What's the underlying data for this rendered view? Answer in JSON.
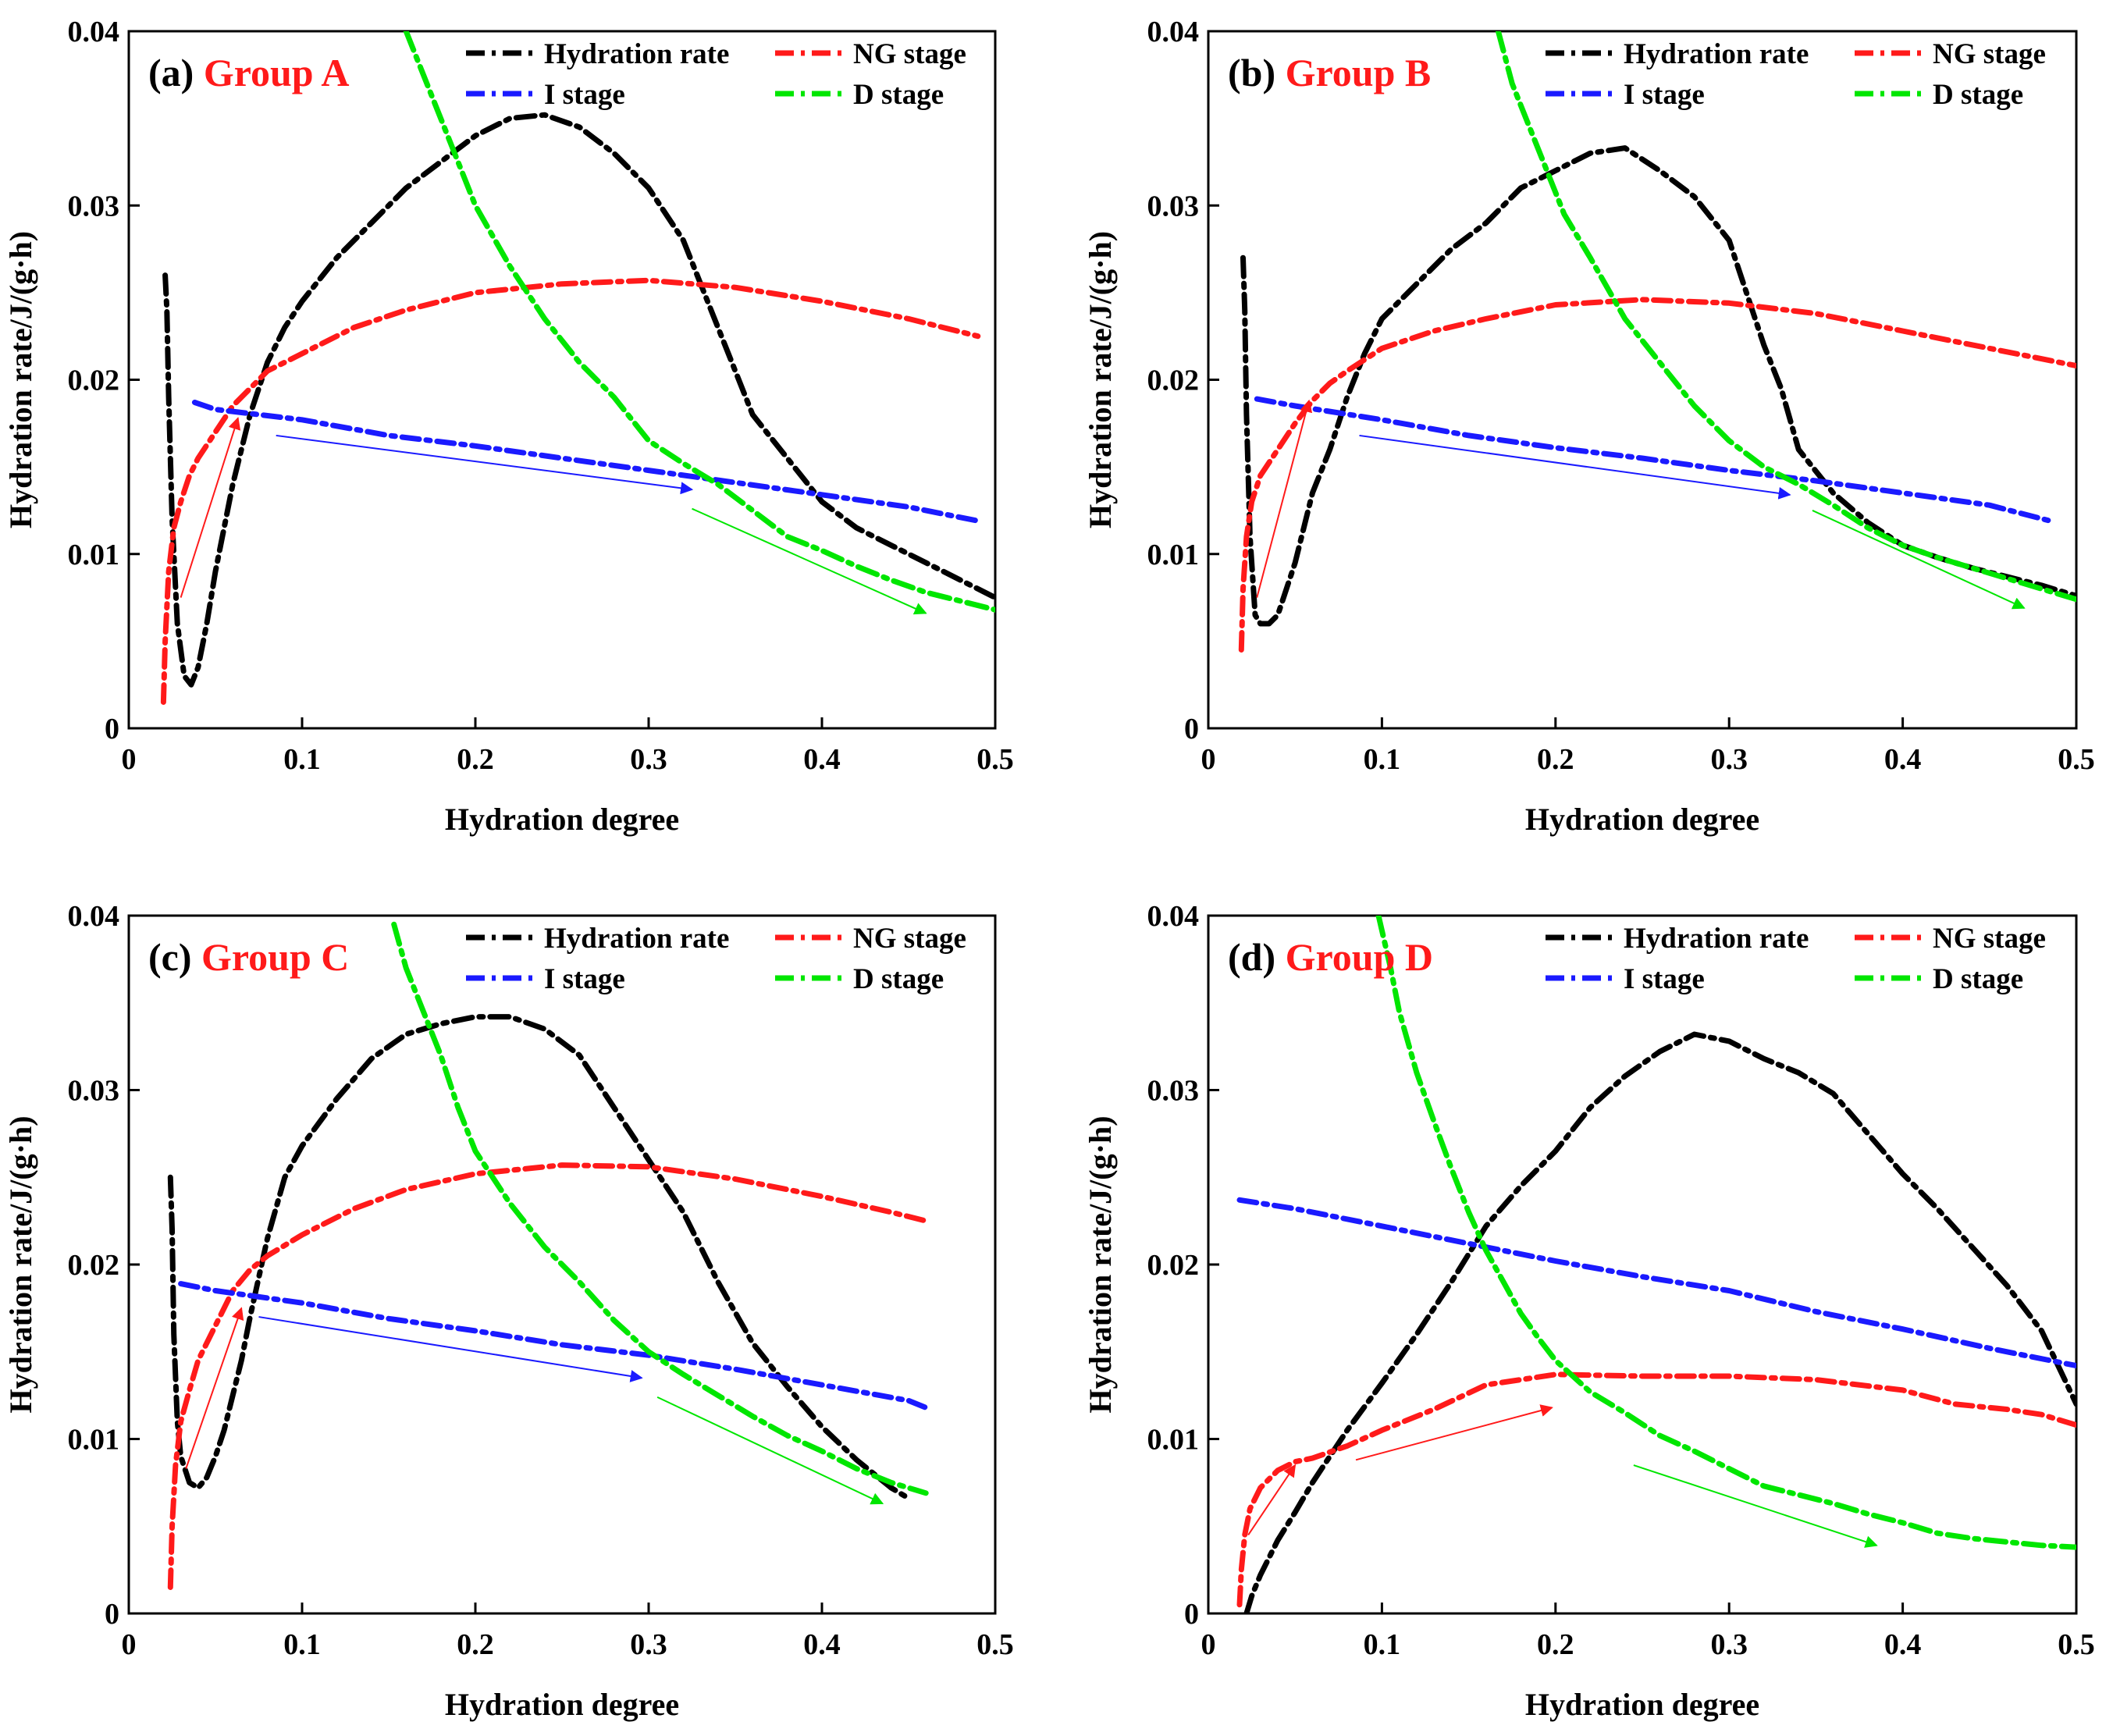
{
  "figure": {
    "x_axis_label": "Hydration degree",
    "y_axis_label": "Hydration rate/J/(g·h)",
    "xlim": [
      0,
      0.5
    ],
    "ylim": [
      0,
      0.04
    ],
    "x_ticks": [
      "0",
      "0.1",
      "0.2",
      "0.3",
      "0.4",
      "0.5"
    ],
    "y_ticks": [
      "0",
      "0.01",
      "0.02",
      "0.03",
      "0.04"
    ],
    "legend": [
      {
        "label": "Hydration rate",
        "color": "#000000"
      },
      {
        "label": "NG stage",
        "color": "#ff1a1a"
      },
      {
        "label": "I stage",
        "color": "#1a1aff"
      },
      {
        "label": "D stage",
        "color": "#00e600"
      }
    ],
    "group_color": "#ff1a1a"
  },
  "chart_data": [
    {
      "type": "line",
      "panel": "(a)",
      "group": "Group A",
      "series": [
        {
          "name": "Hydration rate",
          "color": "#000000",
          "x": [
            0.021,
            0.022,
            0.023,
            0.025,
            0.028,
            0.032,
            0.036,
            0.04,
            0.045,
            0.05,
            0.055,
            0.06,
            0.065,
            0.07,
            0.08,
            0.09,
            0.1,
            0.12,
            0.14,
            0.16,
            0.18,
            0.2,
            0.22,
            0.24,
            0.26,
            0.28,
            0.3,
            0.32,
            0.34,
            0.36,
            0.38,
            0.4,
            0.42,
            0.44,
            0.46,
            0.48,
            0.5
          ],
          "y": [
            0.026,
            0.024,
            0.019,
            0.012,
            0.006,
            0.003,
            0.0025,
            0.0035,
            0.006,
            0.009,
            0.0115,
            0.014,
            0.016,
            0.018,
            0.021,
            0.023,
            0.0245,
            0.027,
            0.029,
            0.031,
            0.0325,
            0.034,
            0.035,
            0.0352,
            0.0345,
            0.033,
            0.031,
            0.028,
            0.023,
            0.018,
            0.0155,
            0.013,
            0.0115,
            0.0105,
            0.0095,
            0.0085,
            0.0075
          ]
        },
        {
          "name": "NG stage",
          "color": "#ff1a1a",
          "x": [
            0.02,
            0.021,
            0.023,
            0.026,
            0.03,
            0.035,
            0.04,
            0.05,
            0.06,
            0.07,
            0.08,
            0.1,
            0.13,
            0.16,
            0.2,
            0.25,
            0.3,
            0.35,
            0.4,
            0.45,
            0.49
          ],
          "y": [
            0.0015,
            0.005,
            0.009,
            0.0115,
            0.013,
            0.0145,
            0.0155,
            0.017,
            0.0185,
            0.0195,
            0.0205,
            0.0215,
            0.023,
            0.024,
            0.025,
            0.0255,
            0.0257,
            0.0253,
            0.0245,
            0.0235,
            0.0225
          ]
        },
        {
          "name": "I stage",
          "color": "#1a1aff",
          "x": [
            0.038,
            0.05,
            0.1,
            0.15,
            0.2,
            0.25,
            0.3,
            0.35,
            0.4,
            0.45,
            0.49
          ],
          "y": [
            0.0187,
            0.0183,
            0.0177,
            0.0168,
            0.0162,
            0.0155,
            0.0148,
            0.0141,
            0.0134,
            0.0127,
            0.0119
          ]
        },
        {
          "name": "D stage",
          "color": "#00e600",
          "x": [
            0.16,
            0.17,
            0.18,
            0.19,
            0.2,
            0.22,
            0.24,
            0.26,
            0.28,
            0.3,
            0.32,
            0.34,
            0.36,
            0.38,
            0.4,
            0.42,
            0.44,
            0.46,
            0.48,
            0.5
          ],
          "y": [
            0.04,
            0.0375,
            0.035,
            0.0325,
            0.03,
            0.0265,
            0.0235,
            0.021,
            0.019,
            0.0165,
            0.0152,
            0.014,
            0.0125,
            0.011,
            0.0102,
            0.0093,
            0.0085,
            0.0078,
            0.0073,
            0.0068
          ]
        }
      ],
      "arrows": [
        {
          "color": "#ff1a1a",
          "from": [
            0.03,
            0.0075
          ],
          "to": [
            0.063,
            0.0178
          ]
        },
        {
          "color": "#1a1aff",
          "from": [
            0.085,
            0.0168
          ],
          "to": [
            0.325,
            0.0137
          ]
        },
        {
          "color": "#00e600",
          "from": [
            0.325,
            0.0126
          ],
          "to": [
            0.46,
            0.0066
          ]
        }
      ]
    },
    {
      "type": "line",
      "panel": "(b)",
      "group": "Group B",
      "series": [
        {
          "name": "Hydration rate",
          "color": "#000000",
          "x": [
            0.02,
            0.021,
            0.022,
            0.024,
            0.027,
            0.03,
            0.035,
            0.04,
            0.05,
            0.06,
            0.07,
            0.08,
            0.09,
            0.1,
            0.12,
            0.14,
            0.16,
            0.18,
            0.2,
            0.22,
            0.24,
            0.26,
            0.28,
            0.3,
            0.31,
            0.32,
            0.33,
            0.34,
            0.36,
            0.38,
            0.4,
            0.42,
            0.44,
            0.46,
            0.48,
            0.5
          ],
          "y": [
            0.027,
            0.024,
            0.018,
            0.011,
            0.0065,
            0.006,
            0.006,
            0.0065,
            0.0095,
            0.0135,
            0.016,
            0.019,
            0.0215,
            0.0235,
            0.0255,
            0.0275,
            0.029,
            0.031,
            0.032,
            0.033,
            0.0333,
            0.032,
            0.0305,
            0.028,
            0.025,
            0.022,
            0.0195,
            0.016,
            0.0135,
            0.0118,
            0.0105,
            0.0098,
            0.0092,
            0.0087,
            0.0082,
            0.0076
          ]
        },
        {
          "name": "NG stage",
          "color": "#ff1a1a",
          "x": [
            0.019,
            0.02,
            0.022,
            0.025,
            0.03,
            0.04,
            0.05,
            0.06,
            0.07,
            0.08,
            0.1,
            0.13,
            0.16,
            0.2,
            0.25,
            0.3,
            0.35,
            0.4,
            0.45,
            0.5
          ],
          "y": [
            0.0045,
            0.008,
            0.011,
            0.013,
            0.0145,
            0.016,
            0.0175,
            0.0188,
            0.0198,
            0.0205,
            0.0218,
            0.0228,
            0.0235,
            0.0243,
            0.0246,
            0.0244,
            0.0238,
            0.0228,
            0.0218,
            0.0208
          ]
        },
        {
          "name": "I stage",
          "color": "#1a1aff",
          "x": [
            0.028,
            0.05,
            0.1,
            0.15,
            0.2,
            0.25,
            0.3,
            0.35,
            0.4,
            0.45,
            0.485
          ],
          "y": [
            0.0189,
            0.0185,
            0.0177,
            0.0168,
            0.0161,
            0.0155,
            0.0148,
            0.0142,
            0.0135,
            0.0128,
            0.0119
          ]
        },
        {
          "name": "D stage",
          "color": "#00e600",
          "x": [
            0.167,
            0.175,
            0.185,
            0.195,
            0.205,
            0.22,
            0.24,
            0.26,
            0.28,
            0.3,
            0.32,
            0.34,
            0.36,
            0.38,
            0.4,
            0.42,
            0.44,
            0.46,
            0.48,
            0.5
          ],
          "y": [
            0.04,
            0.037,
            0.0345,
            0.032,
            0.0295,
            0.027,
            0.0235,
            0.021,
            0.0185,
            0.0165,
            0.015,
            0.014,
            0.0128,
            0.0115,
            0.0105,
            0.0098,
            0.0092,
            0.0086,
            0.008,
            0.0074
          ]
        }
      ],
      "arrows": [
        {
          "color": "#ff1a1a",
          "from": [
            0.028,
            0.0075
          ],
          "to": [
            0.058,
            0.0188
          ]
        },
        {
          "color": "#1a1aff",
          "from": [
            0.087,
            0.0168
          ],
          "to": [
            0.335,
            0.0134
          ]
        },
        {
          "color": "#00e600",
          "from": [
            0.348,
            0.0125
          ],
          "to": [
            0.47,
            0.0069
          ]
        }
      ]
    },
    {
      "type": "line",
      "panel": "(c)",
      "group": "Group C",
      "series": [
        {
          "name": "Hydration rate",
          "color": "#000000",
          "x": [
            0.024,
            0.025,
            0.026,
            0.028,
            0.03,
            0.035,
            0.04,
            0.045,
            0.05,
            0.055,
            0.06,
            0.065,
            0.07,
            0.08,
            0.09,
            0.1,
            0.12,
            0.14,
            0.16,
            0.18,
            0.2,
            0.22,
            0.24,
            0.26,
            0.28,
            0.3,
            0.32,
            0.34,
            0.36,
            0.38,
            0.4,
            0.42,
            0.44,
            0.45
          ],
          "y": [
            0.025,
            0.022,
            0.016,
            0.011,
            0.009,
            0.0075,
            0.0072,
            0.0078,
            0.009,
            0.0105,
            0.0125,
            0.0145,
            0.017,
            0.0215,
            0.025,
            0.0268,
            0.0295,
            0.0318,
            0.0332,
            0.0338,
            0.0342,
            0.0342,
            0.0335,
            0.032,
            0.029,
            0.026,
            0.023,
            0.019,
            0.0155,
            0.013,
            0.0107,
            0.0088,
            0.0072,
            0.0066
          ]
        },
        {
          "name": "NG stage",
          "color": "#ff1a1a",
          "x": [
            0.024,
            0.025,
            0.027,
            0.03,
            0.035,
            0.04,
            0.05,
            0.06,
            0.07,
            0.08,
            0.1,
            0.13,
            0.16,
            0.2,
            0.25,
            0.3,
            0.35,
            0.4,
            0.44,
            0.46
          ],
          "y": [
            0.0015,
            0.005,
            0.0085,
            0.011,
            0.0128,
            0.0145,
            0.0165,
            0.0185,
            0.0197,
            0.0205,
            0.0217,
            0.0232,
            0.0243,
            0.0252,
            0.0257,
            0.0256,
            0.0249,
            0.0239,
            0.023,
            0.0225
          ]
        },
        {
          "name": "I stage",
          "color": "#1a1aff",
          "x": [
            0.03,
            0.05,
            0.1,
            0.15,
            0.2,
            0.25,
            0.3,
            0.35,
            0.4,
            0.45,
            0.46
          ],
          "y": [
            0.0189,
            0.0185,
            0.0178,
            0.0169,
            0.0162,
            0.0154,
            0.0148,
            0.014,
            0.0131,
            0.0122,
            0.0118
          ]
        },
        {
          "name": "D stage",
          "color": "#00e600",
          "x": [
            0.153,
            0.16,
            0.17,
            0.18,
            0.19,
            0.2,
            0.22,
            0.24,
            0.26,
            0.28,
            0.3,
            0.32,
            0.34,
            0.36,
            0.38,
            0.4,
            0.42,
            0.44,
            0.46
          ],
          "y": [
            0.0395,
            0.037,
            0.0345,
            0.032,
            0.029,
            0.0265,
            0.0235,
            0.021,
            0.019,
            0.0168,
            0.015,
            0.0137,
            0.0125,
            0.0113,
            0.0102,
            0.0093,
            0.0083,
            0.0075,
            0.0069
          ]
        }
      ],
      "arrows": [
        {
          "color": "#ff1a1a",
          "from": [
            0.033,
            0.0083
          ],
          "to": [
            0.065,
            0.0175
          ]
        },
        {
          "color": "#1a1aff",
          "from": [
            0.075,
            0.017
          ],
          "to": [
            0.296,
            0.0135
          ]
        },
        {
          "color": "#00e600",
          "from": [
            0.305,
            0.0124
          ],
          "to": [
            0.435,
            0.0063
          ]
        }
      ]
    },
    {
      "type": "line",
      "panel": "(d)",
      "group": "Group D",
      "series": [
        {
          "name": "Hydration rate",
          "color": "#000000",
          "x": [
            0.022,
            0.025,
            0.03,
            0.04,
            0.05,
            0.06,
            0.07,
            0.08,
            0.1,
            0.12,
            0.14,
            0.16,
            0.18,
            0.2,
            0.22,
            0.24,
            0.26,
            0.28,
            0.3,
            0.32,
            0.34,
            0.36,
            0.38,
            0.4,
            0.42,
            0.44,
            0.46,
            0.48,
            0.5
          ],
          "y": [
            0.0,
            0.001,
            0.0022,
            0.0042,
            0.0058,
            0.0075,
            0.009,
            0.0105,
            0.0132,
            0.016,
            0.019,
            0.0222,
            0.0245,
            0.0265,
            0.029,
            0.0308,
            0.0322,
            0.0332,
            0.0328,
            0.0318,
            0.031,
            0.0298,
            0.0275,
            0.0252,
            0.0232,
            0.021,
            0.0188,
            0.0162,
            0.012
          ]
        },
        {
          "name": "NG stage",
          "color": "#ff1a1a",
          "x": [
            0.018,
            0.019,
            0.021,
            0.024,
            0.03,
            0.04,
            0.05,
            0.06,
            0.08,
            0.1,
            0.13,
            0.16,
            0.2,
            0.25,
            0.3,
            0.35,
            0.4,
            0.43,
            0.46,
            0.48,
            0.5
          ],
          "y": [
            0.0005,
            0.0025,
            0.0045,
            0.006,
            0.0072,
            0.0082,
            0.0087,
            0.0089,
            0.0096,
            0.0105,
            0.0117,
            0.0131,
            0.0137,
            0.0136,
            0.0136,
            0.0134,
            0.0128,
            0.012,
            0.0117,
            0.0114,
            0.0108
          ]
        },
        {
          "name": "I stage",
          "color": "#1a1aff",
          "x": [
            0.018,
            0.05,
            0.1,
            0.15,
            0.2,
            0.25,
            0.3,
            0.35,
            0.4,
            0.45,
            0.5
          ],
          "y": [
            0.0237,
            0.0232,
            0.0222,
            0.0212,
            0.0202,
            0.0193,
            0.0185,
            0.0173,
            0.0163,
            0.0152,
            0.0142
          ]
        },
        {
          "name": "D stage",
          "color": "#00e600",
          "x": [
            0.098,
            0.105,
            0.11,
            0.12,
            0.13,
            0.14,
            0.15,
            0.16,
            0.17,
            0.18,
            0.19,
            0.2,
            0.22,
            0.24,
            0.26,
            0.28,
            0.3,
            0.32,
            0.34,
            0.36,
            0.38,
            0.4,
            0.42,
            0.44,
            0.46,
            0.48,
            0.5
          ],
          "y": [
            0.04,
            0.037,
            0.0345,
            0.031,
            0.0282,
            0.0255,
            0.023,
            0.0208,
            0.019,
            0.0172,
            0.0158,
            0.0145,
            0.0127,
            0.0115,
            0.0102,
            0.0093,
            0.0083,
            0.0073,
            0.0068,
            0.0063,
            0.0057,
            0.0052,
            0.0046,
            0.0043,
            0.0041,
            0.0039,
            0.0038
          ]
        }
      ],
      "arrows": [
        {
          "color": "#ff1a1a",
          "from": [
            0.023,
            0.0045
          ],
          "to": [
            0.05,
            0.0085
          ]
        },
        {
          "color": "#ff1a1a",
          "from": [
            0.085,
            0.0088
          ],
          "to": [
            0.198,
            0.0118
          ]
        },
        {
          "color": "#00e600",
          "from": [
            0.245,
            0.0085
          ],
          "to": [
            0.385,
            0.0039
          ]
        }
      ]
    }
  ]
}
